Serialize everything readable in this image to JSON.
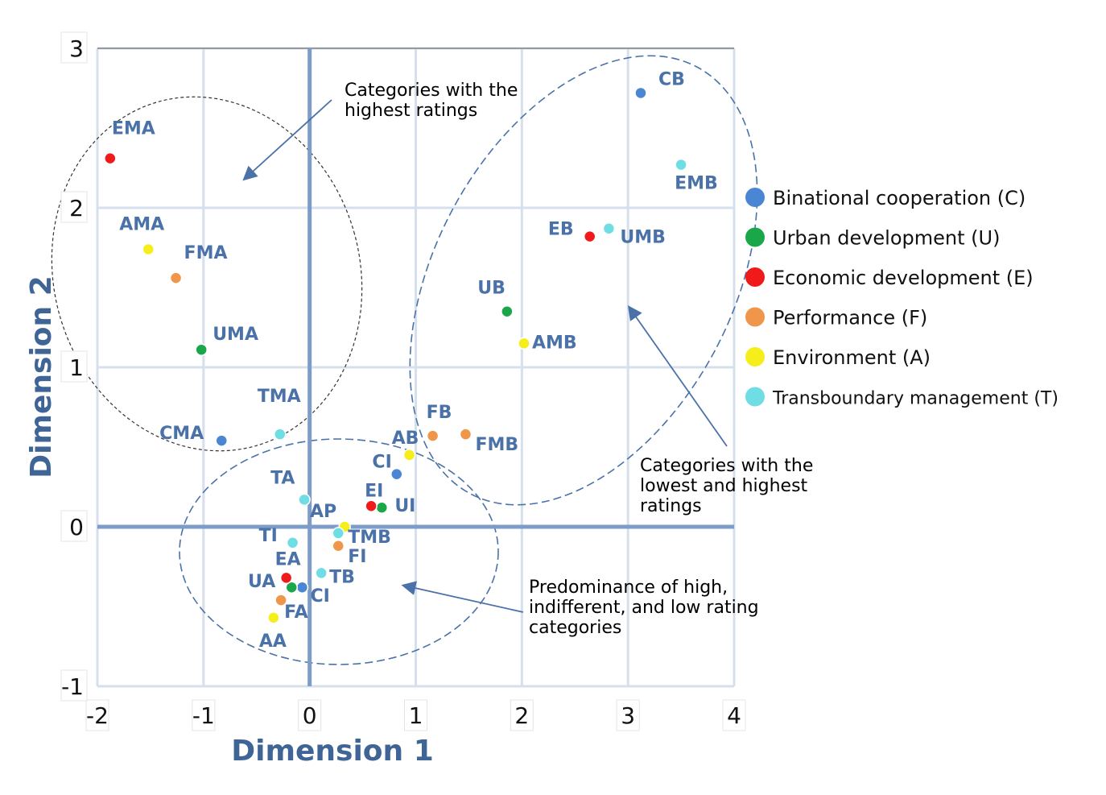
{
  "chart_data": {
    "type": "scatter",
    "xlabel": "Dimension 1",
    "ylabel": "Dimension 2",
    "xlim": [
      -2,
      4
    ],
    "ylim": [
      -1,
      3
    ],
    "x_ticks": [
      "-2",
      "-1",
      "0",
      "1",
      "2",
      "3",
      "4"
    ],
    "y_ticks": [
      "3",
      "2",
      "1",
      "0",
      "-1"
    ],
    "grid": true,
    "legend_position": "right",
    "series": [
      {
        "name": "Binational cooperation (C)",
        "color": "#4a86d4",
        "points": [
          {
            "label": "CB",
            "x": 3.12,
            "y": 2.72
          },
          {
            "label": "CMA",
            "x": -0.83,
            "y": 0.54
          },
          {
            "label": "CI",
            "x": 0.82,
            "y": 0.33
          },
          {
            "label": "CI",
            "x": -0.07,
            "y": -0.38
          }
        ]
      },
      {
        "name": "Urban development (U)",
        "color": "#1aa74a",
        "points": [
          {
            "label": "UMA",
            "x": -1.02,
            "y": 1.11
          },
          {
            "label": "UB",
            "x": 1.86,
            "y": 1.35
          },
          {
            "label": "UI",
            "x": 0.68,
            "y": 0.12
          },
          {
            "label": "UA",
            "x": -0.17,
            "y": -0.38
          }
        ]
      },
      {
        "name": "Economic development (E)",
        "color": "#f01a1a",
        "points": [
          {
            "label": "EMA",
            "x": -1.88,
            "y": 2.31
          },
          {
            "label": "EB",
            "x": 2.64,
            "y": 1.82
          },
          {
            "label": "EI",
            "x": 0.58,
            "y": 0.13
          },
          {
            "label": "EA",
            "x": -0.22,
            "y": -0.32
          }
        ]
      },
      {
        "name": "Performance (F)",
        "color": "#f0964a",
        "points": [
          {
            "label": "FMA",
            "x": -1.26,
            "y": 1.56
          },
          {
            "label": "FB",
            "x": 1.16,
            "y": 0.57
          },
          {
            "label": "FMB",
            "x": 1.47,
            "y": 0.58
          },
          {
            "label": "FI",
            "x": 0.27,
            "y": -0.12
          },
          {
            "label": "FA",
            "x": -0.27,
            "y": -0.46
          }
        ]
      },
      {
        "name": "Environment (A)",
        "color": "#f5ee1a",
        "points": [
          {
            "label": "AMA",
            "x": -1.52,
            "y": 1.74
          },
          {
            "label": "AMB",
            "x": 2.02,
            "y": 1.15
          },
          {
            "label": "AB",
            "x": 0.94,
            "y": 0.45
          },
          {
            "label": "AP",
            "x": 0.33,
            "y": 0.0
          },
          {
            "label": "AA",
            "x": -0.34,
            "y": -0.57
          }
        ]
      },
      {
        "name": "Transboundary management (T)",
        "color": "#6fdde4",
        "points": [
          {
            "label": "EMB",
            "x": 3.5,
            "y": 2.27
          },
          {
            "label": "UMB",
            "x": 2.82,
            "y": 1.87
          },
          {
            "label": "TMA",
            "x": -0.28,
            "y": 0.58
          },
          {
            "label": "TA",
            "x": -0.05,
            "y": 0.17
          },
          {
            "label": "TMB",
            "x": 0.27,
            "y": -0.04
          },
          {
            "label": "TI",
            "x": -0.16,
            "y": -0.1
          },
          {
            "label": "TB",
            "x": 0.11,
            "y": -0.29
          }
        ]
      }
    ],
    "annotations": [
      {
        "id": "highest",
        "lines": [
          "Categories with the",
          "highest ratings"
        ]
      },
      {
        "id": "lowest_highest",
        "lines": [
          "Categories with the",
          "lowest and highest",
          "ratings"
        ]
      },
      {
        "id": "mixed",
        "lines": [
          "Predominance of high,",
          "indifferent, and low rating",
          "categories"
        ]
      }
    ]
  }
}
